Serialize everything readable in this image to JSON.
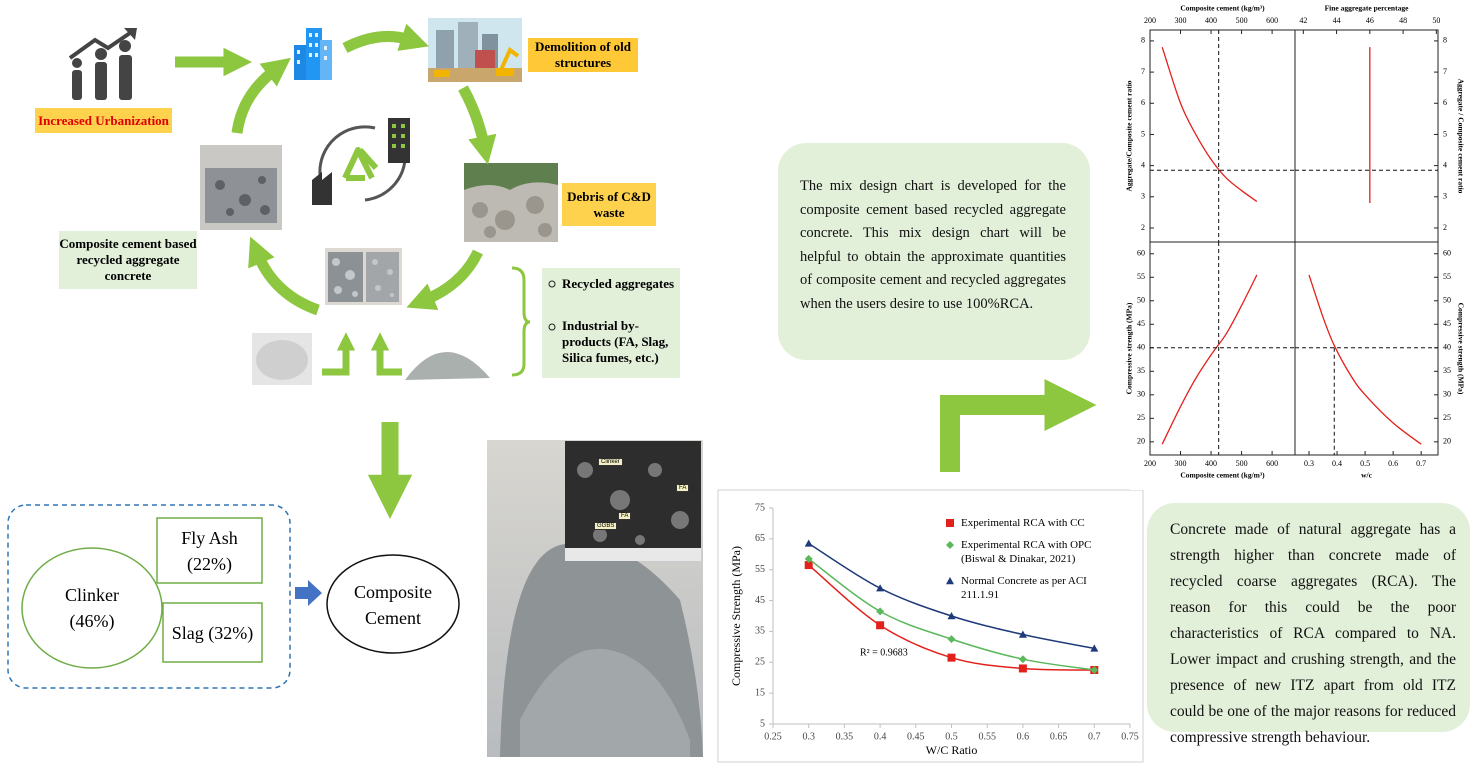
{
  "cycle": {
    "urbanization": "Increased Urbanization",
    "demolition": "Demolition of old structures",
    "debris": "Debris of C&D waste",
    "product": "Composite cement based recycled aggregate concrete",
    "inputs": [
      "Recycled aggregates",
      "Industrial by-products (FA, Slag, Silica fumes, etc.)"
    ]
  },
  "composition": {
    "clinker": "Clinker (46%)",
    "fly_ash": "Fly Ash (22%)",
    "slag": "Slag (32%)",
    "result": "Composite Cement"
  },
  "sem_labels": [
    "Clinker",
    "FA",
    "FA",
    "GGBS"
  ],
  "notes": [
    "The mix design chart is developed for the composite cement based recycled aggregate concrete. This mix design chart will be helpful to obtain the approximate quantities of composite cement and recycled aggregates when the users desire to use 100%RCA.",
    "Concrete made of natural aggregate has a strength higher than concrete made of recycled coarse aggregates (RCA). The reason for this could be the poor characteristics of RCA compared to NA. Lower impact and crushing strength, and the presence of new ITZ apart from old ITZ could be one of the major reasons for reduced compressive strength behaviour."
  ],
  "chart_data": [
    {
      "type": "scatter",
      "xlabel": "W/C Ratio",
      "ylabel": "Compressive Strength (MPa)",
      "xlim": [
        0.25,
        0.75
      ],
      "xticks": [
        0.25,
        0.3,
        0.35,
        0.4,
        0.45,
        0.5,
        0.55,
        0.6,
        0.65,
        0.7,
        0.75
      ],
      "ylim": [
        5,
        75
      ],
      "yticks": [
        5,
        15,
        25,
        35,
        45,
        55,
        65,
        75
      ],
      "x": [
        0.3,
        0.4,
        0.5,
        0.6,
        0.7
      ],
      "trendline": true,
      "legend": "upper right",
      "annotation": "R² = 0.9683",
      "series": [
        {
          "name": "Experimental RCA with CC",
          "color": "#e3211c",
          "marker": "square",
          "values": [
            56.5,
            37,
            26.5,
            23,
            22.5
          ]
        },
        {
          "name": "Experimental RCA with OPC (Biswal & Dinakar, 2021)",
          "color": "#5cb85c",
          "marker": "diamond",
          "values": [
            58.5,
            41.5,
            32.5,
            26,
            22.5
          ]
        },
        {
          "name": "Normal Concrete as per ACI 211.1.91",
          "color": "#1f3a7a",
          "marker": "triangle",
          "values": [
            63.5,
            49,
            40,
            34,
            29.5
          ]
        }
      ]
    },
    {
      "type": "line",
      "xaxis": "top",
      "yaxis": "left",
      "xlabel": "Composite cement (kg/m³)",
      "ylabel": "Aggregate/Composite cement ratio",
      "xlim": [
        200,
        675
      ],
      "xticks": [
        200,
        300,
        400,
        500,
        600
      ],
      "ylim": [
        1.55,
        8.35
      ],
      "yticks": [
        2,
        3,
        4,
        5,
        6,
        7,
        8
      ],
      "color": "#e3211c",
      "x": [
        240,
        300,
        350,
        400,
        450,
        500,
        550
      ],
      "values": [
        7.8,
        6.0,
        5.0,
        4.2,
        3.6,
        3.2,
        2.85
      ],
      "guides": {
        "x": 425,
        "y": 3.85
      }
    },
    {
      "type": "line",
      "xaxis": "top",
      "yaxis": "right",
      "xlabel": "Fine aggregate percentage",
      "ylabel": "Aggregate / Composite cement ratio",
      "xlim": [
        41.5,
        50.1
      ],
      "xticks": [
        42,
        44,
        46,
        48,
        50
      ],
      "ylim": [
        1.55,
        8.35
      ],
      "yticks": [
        2,
        3,
        4,
        5,
        6,
        7,
        8
      ],
      "color": "#e3211c",
      "x": [
        46,
        46
      ],
      "values": [
        2.8,
        7.8
      ],
      "guides": {
        "y": 3.85
      }
    },
    {
      "type": "line",
      "xaxis": "bottom",
      "yaxis": "left",
      "xlabel": "Composite cement (kg/m³)",
      "ylabel": "Compressive strength (MPa)",
      "xlim": [
        200,
        675
      ],
      "xticks": [
        200,
        300,
        400,
        500,
        600
      ],
      "ylim": [
        17.2,
        62.5
      ],
      "yticks": [
        20,
        25,
        30,
        35,
        40,
        45,
        50,
        55,
        60
      ],
      "color": "#e3211c",
      "x": [
        240,
        300,
        350,
        400,
        450,
        500,
        550
      ],
      "values": [
        19.5,
        27.5,
        33.5,
        38.5,
        43,
        49,
        55.5
      ],
      "guides": {
        "x": 425,
        "y": 40
      }
    },
    {
      "type": "line",
      "xaxis": "bottom",
      "yaxis": "right",
      "xlabel": "w/c",
      "ylabel": "Compressive strength (MPa)",
      "xlim": [
        0.25,
        0.76
      ],
      "xticks": [
        0.3,
        0.4,
        0.5,
        0.6,
        0.7
      ],
      "ylim": [
        17.2,
        62.5
      ],
      "yticks": [
        20,
        25,
        30,
        35,
        40,
        45,
        50,
        55,
        60
      ],
      "color": "#e3211c",
      "x": [
        0.3,
        0.35,
        0.39,
        0.45,
        0.5,
        0.6,
        0.7
      ],
      "values": [
        55.5,
        46.5,
        40.5,
        34,
        30,
        24,
        19.5
      ],
      "guides": {
        "x": 0.39,
        "y": 40
      },
      "guide_x_to_curve": true
    }
  ]
}
